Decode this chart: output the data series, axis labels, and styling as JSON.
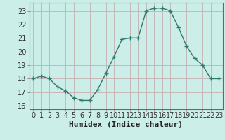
{
  "x": [
    0,
    1,
    2,
    3,
    4,
    5,
    6,
    7,
    8,
    9,
    10,
    11,
    12,
    13,
    14,
    15,
    16,
    17,
    18,
    19,
    20,
    21,
    22,
    23
  ],
  "y": [
    18.0,
    18.2,
    18.0,
    17.4,
    17.1,
    16.6,
    16.4,
    16.4,
    17.2,
    18.4,
    19.6,
    20.9,
    21.0,
    21.0,
    23.0,
    23.2,
    23.2,
    23.0,
    21.8,
    20.4,
    19.5,
    19.0,
    18.0,
    18.0
  ],
  "line_color": "#2d7a6e",
  "marker": "+",
  "marker_size": 4,
  "bg_color": "#cceee8",
  "plot_bg_color": "#cceee8",
  "grid_major_color": "#c8b8b8",
  "grid_minor_color": "#ddc8c8",
  "xlabel": "Humidex (Indice chaleur)",
  "xlabel_fontsize": 8,
  "xlim": [
    -0.5,
    23.5
  ],
  "ylim": [
    15.75,
    23.6
  ],
  "yticks": [
    16,
    17,
    18,
    19,
    20,
    21,
    22,
    23
  ],
  "xticks": [
    0,
    1,
    2,
    3,
    4,
    5,
    6,
    7,
    8,
    9,
    10,
    11,
    12,
    13,
    14,
    15,
    16,
    17,
    18,
    19,
    20,
    21,
    22,
    23
  ],
  "tick_fontsize": 7,
  "spine_color": "#557070",
  "linewidth": 1.0
}
